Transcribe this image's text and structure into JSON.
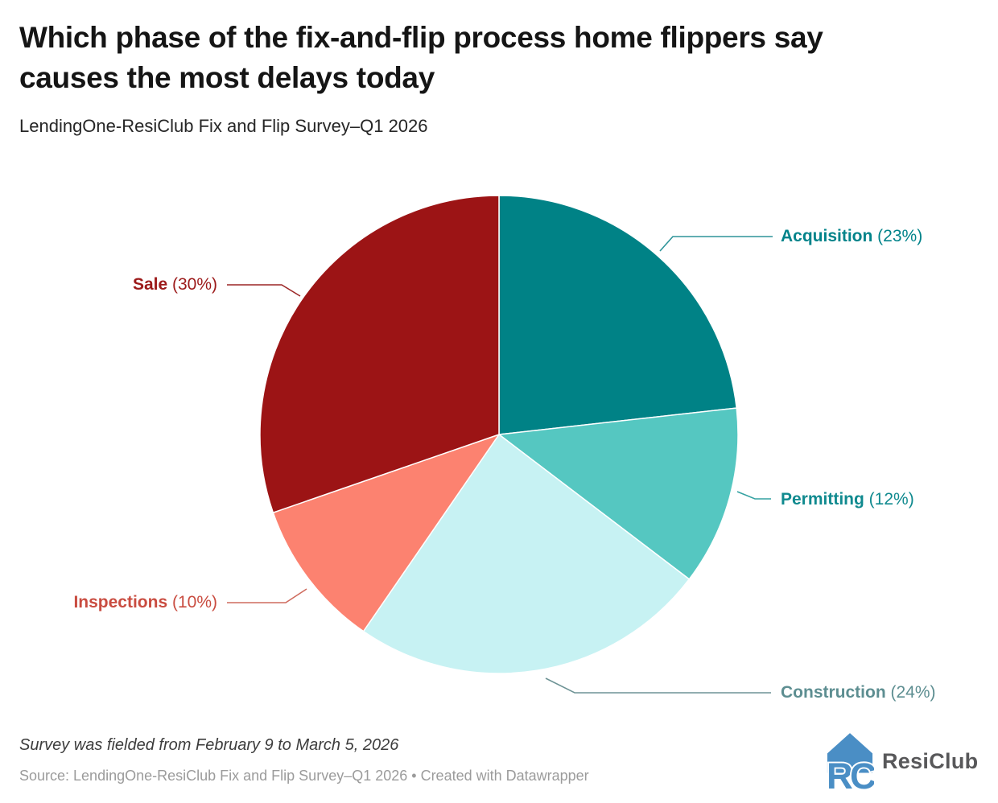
{
  "header": {
    "title_lines": [
      "Which phase of the fix-and-flip process home flippers say",
      "causes the most delays today"
    ],
    "subtitle": "LendingOne-ResiClub Fix and Flip Survey–Q1 2026"
  },
  "chart_data": {
    "type": "pie",
    "title": "Which phase of the fix-and-flip process home flippers say causes the most delays today",
    "subtitle": "LendingOne-ResiClub Fix and Flip Survey–Q1 2026",
    "unit": "%",
    "start_angle_deg": 0,
    "direction": "clockwise",
    "labels_style": "outside callouts with leader lines",
    "slices": [
      {
        "label": "Acquisition",
        "value": 23,
        "color": "#008286",
        "label_color": "#00838a",
        "line_color": "#2e9499"
      },
      {
        "label": "Permitting",
        "value": 12,
        "color": "#55c7c1",
        "label_color": "#108a8f",
        "line_color": "#35a2a2"
      },
      {
        "label": "Construction",
        "value": 24,
        "color": "#c7f2f3",
        "label_color": "#5d8e91",
        "line_color": "#6f9496"
      },
      {
        "label": "Inspections",
        "value": 10,
        "color": "#fc8270",
        "label_color": "#c94c40",
        "line_color": "#cf6b5e"
      },
      {
        "label": "Sale",
        "value": 30,
        "color": "#9c1415",
        "label_color": "#9c1a1a",
        "line_color": "#9c2727"
      }
    ]
  },
  "footer": {
    "note": "Survey was fielded from February 9 to March 5, 2026",
    "source": "Source: LendingOne-ResiClub Fix and Flip Survey–Q1 2026 • Created with Datawrapper",
    "logo": {
      "text": "ResiClub",
      "icon": "resiclub-house-icon",
      "color": "#4a8ec5"
    }
  }
}
